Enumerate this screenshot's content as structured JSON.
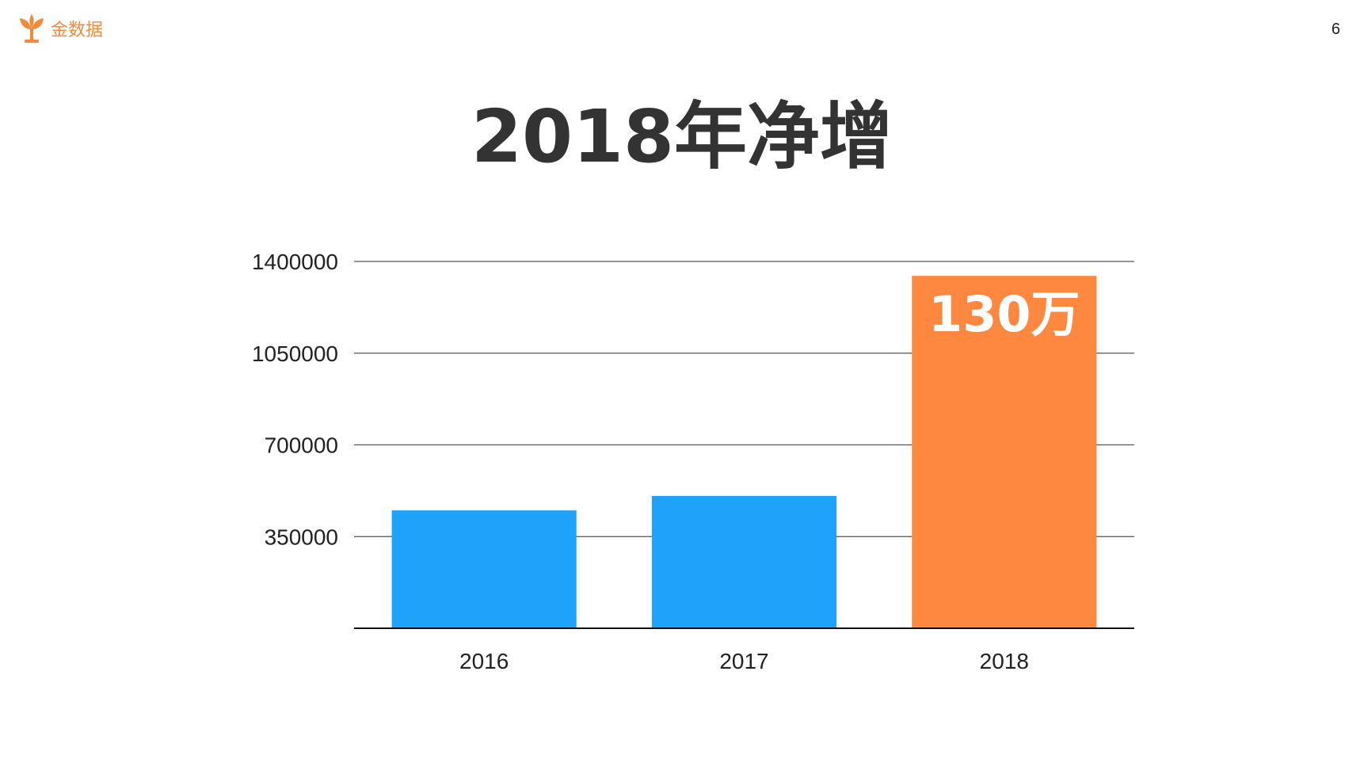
{
  "header": {
    "logo_text": "金数据",
    "page_number": "6"
  },
  "colors": {
    "logo": "#f08a3c",
    "bar_default": "#1fa3fa",
    "bar_highlight": "#ff8841",
    "title": "#333333"
  },
  "chart_data": {
    "type": "bar",
    "title": "2018年净增",
    "xlabel": "",
    "ylabel": "",
    "categories": [
      "2016",
      "2017",
      "2018"
    ],
    "values": [
      450000,
      505000,
      1345000
    ],
    "highlight_index": 2,
    "data_labels": [
      "",
      "",
      "130万"
    ],
    "ylim": [
      0,
      1400000
    ],
    "yticks": [
      350000,
      700000,
      1050000,
      1400000
    ],
    "ytick_labels": [
      "350000",
      "700000",
      "1050000",
      "1400000"
    ],
    "grid": true,
    "legend": "none"
  }
}
